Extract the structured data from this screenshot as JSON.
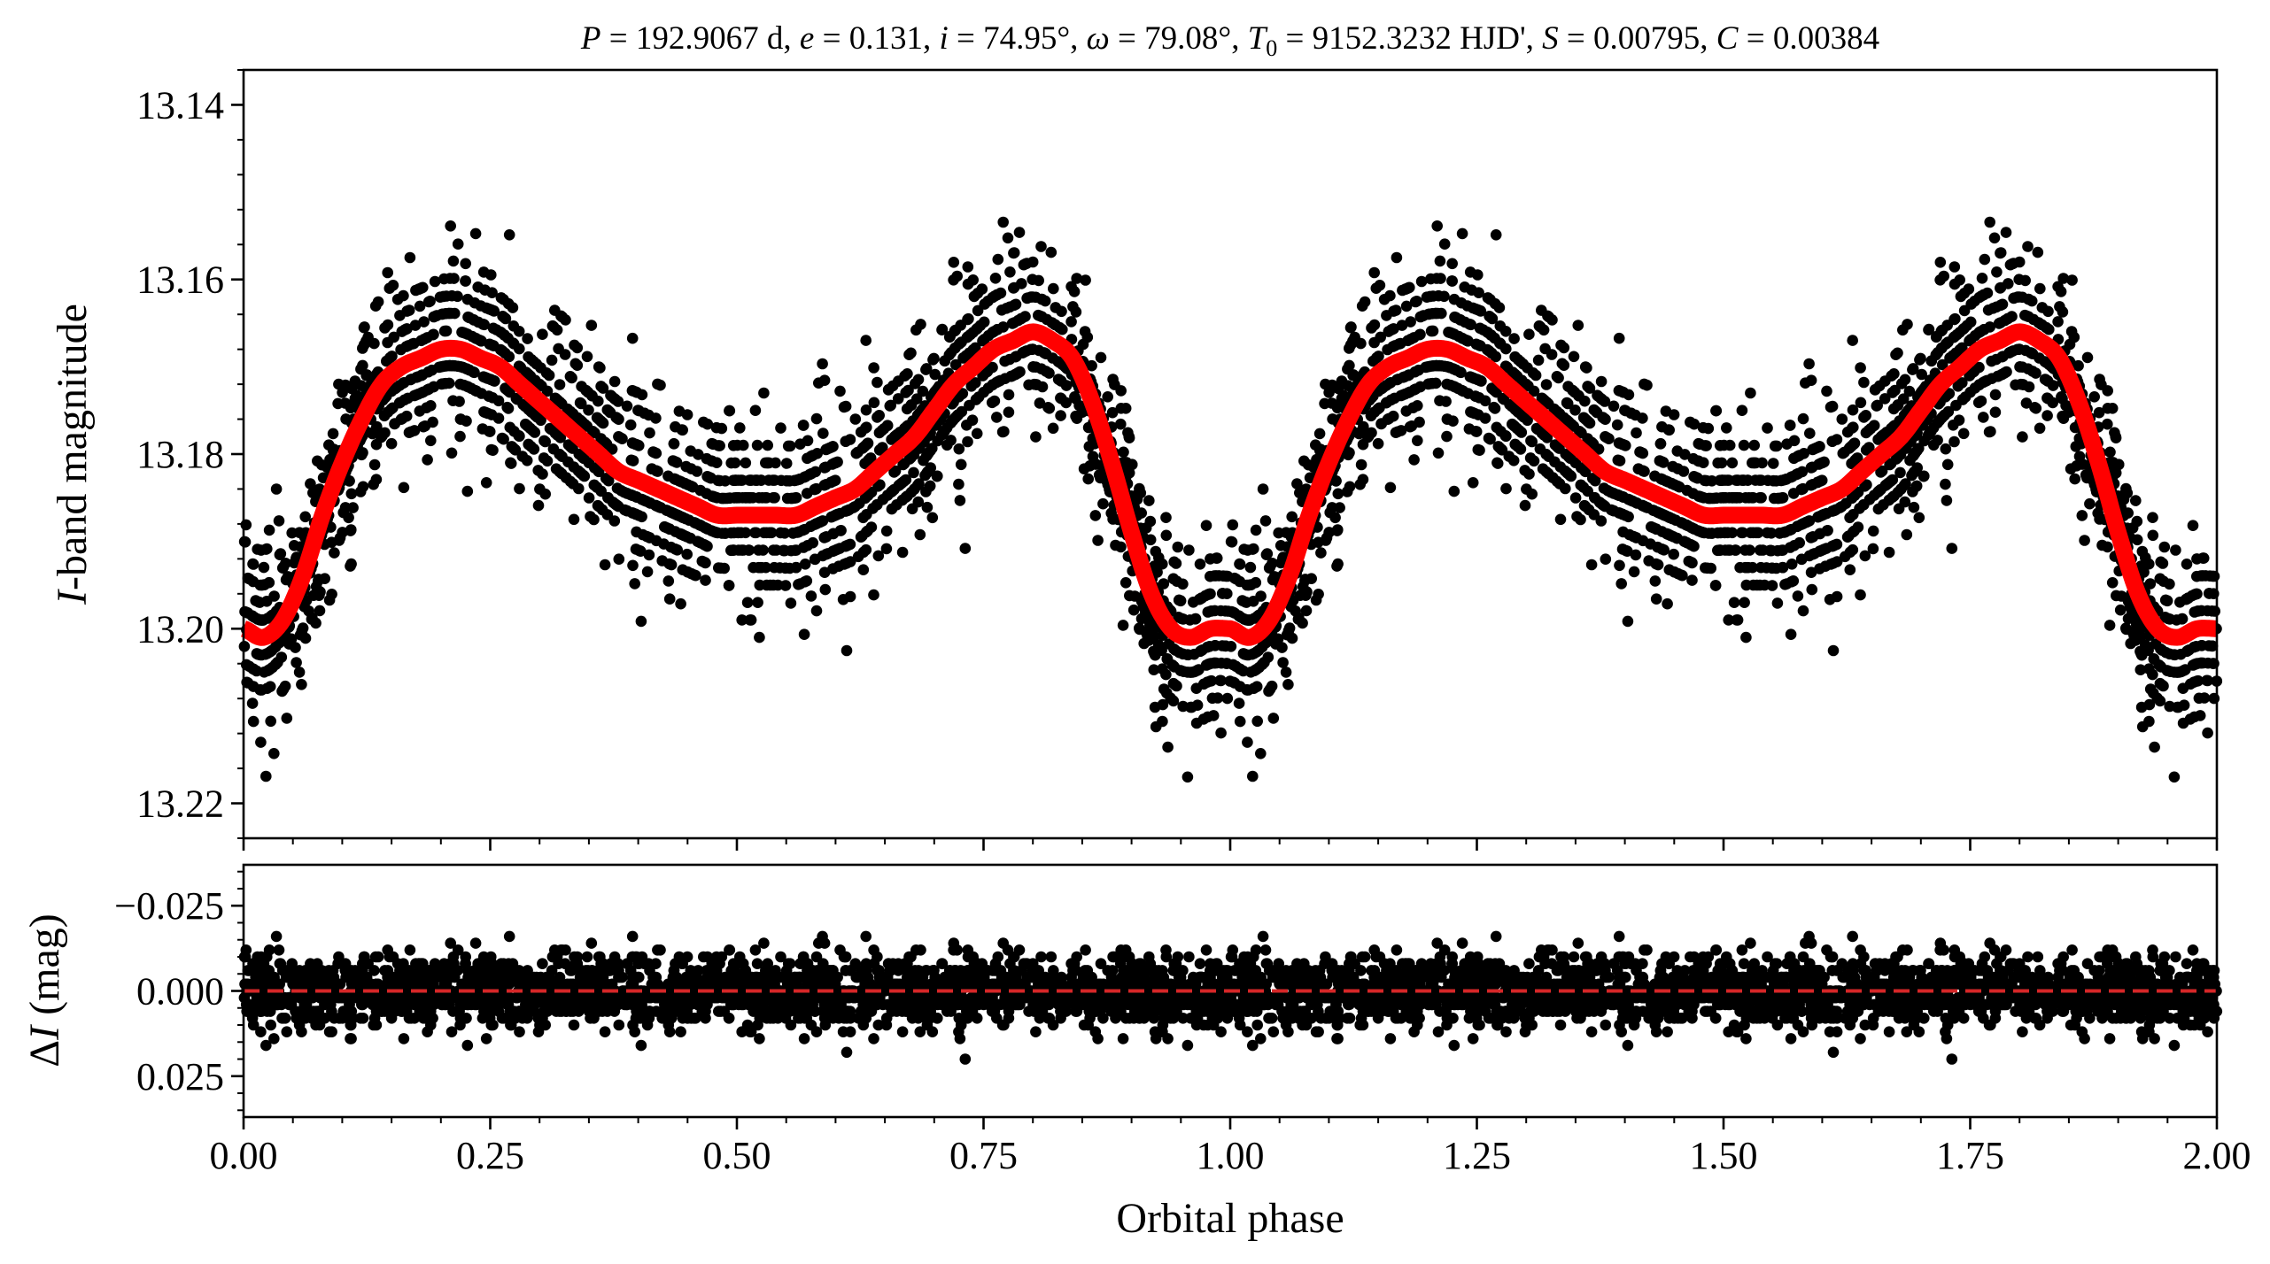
{
  "chart_data": [
    {
      "panel": "light-curve",
      "type": "scatter",
      "title": "P = 192.9067 d, e = 0.131, i = 74.95°, ω = 79.08°, T0 = 9152.3232 HJD', S = 0.00795, C = 0.00384",
      "title_parts": {
        "P_sym": "P",
        "P_val": " = 192.9067 d, ",
        "e_sym": "e",
        "e_val": " = 0.131, ",
        "i_sym": "i",
        "i_val": " = 74.95°, ",
        "w_sym": "ω",
        "w_val": " = 79.08°, ",
        "T_sym": "T",
        "T_sub": "0",
        "T_val": " = 9152.3232 HJD', ",
        "S_sym": "S",
        "S_val": " = 0.00795, ",
        "C_sym": "C",
        "C_val": " = 0.00384"
      },
      "ylabel": "I-band magnitude",
      "ylabel_parts": {
        "italic": "I",
        "rest": "-band magnitude"
      },
      "ylim": [
        13.224,
        13.136
      ],
      "y_inverted": true,
      "y_tick_values": [
        13.14,
        13.16,
        13.18,
        13.2,
        13.22
      ],
      "y_tick_labels": [
        "13.14",
        "13.16",
        "13.18",
        "13.20",
        "13.22"
      ],
      "xlim": [
        0.0,
        2.0
      ],
      "phase_repeat": 2,
      "series": [
        {
          "role": "observations",
          "marker": "dot",
          "color": "#000000",
          "x": [
            0.0,
            0.02,
            0.04,
            0.06,
            0.08,
            0.1,
            0.12,
            0.14,
            0.16,
            0.18,
            0.2,
            0.22,
            0.24,
            0.26,
            0.28,
            0.3,
            0.32,
            0.34,
            0.36,
            0.38,
            0.4,
            0.42,
            0.44,
            0.46,
            0.48,
            0.5,
            0.52,
            0.54,
            0.56,
            0.58,
            0.6,
            0.62,
            0.64,
            0.66,
            0.68,
            0.7,
            0.72,
            0.74,
            0.76,
            0.78,
            0.8,
            0.82,
            0.84,
            0.86,
            0.88,
            0.9,
            0.92,
            0.94,
            0.96,
            0.98,
            1.0
          ],
          "y": [
            13.2,
            13.201,
            13.199,
            13.194,
            13.187,
            13.181,
            13.176,
            13.172,
            13.17,
            13.169,
            13.168,
            13.168,
            13.169,
            13.17,
            13.172,
            13.174,
            13.176,
            13.178,
            13.18,
            13.182,
            13.183,
            13.184,
            13.185,
            13.186,
            13.187,
            13.187,
            13.187,
            13.187,
            13.187,
            13.186,
            13.185,
            13.184,
            13.182,
            13.18,
            13.178,
            13.175,
            13.172,
            13.17,
            13.168,
            13.167,
            13.166,
            13.167,
            13.169,
            13.174,
            13.181,
            13.189,
            13.196,
            13.2,
            13.201,
            13.2,
            13.2
          ],
          "scatter_sigma_mag": 0.005,
          "n_points_per_cycle": 2400
        },
        {
          "role": "model",
          "type": "line",
          "color": "#ff0000",
          "x": [
            0.0,
            0.02,
            0.04,
            0.06,
            0.08,
            0.1,
            0.12,
            0.14,
            0.16,
            0.18,
            0.2,
            0.22,
            0.24,
            0.26,
            0.28,
            0.3,
            0.32,
            0.34,
            0.36,
            0.38,
            0.4,
            0.42,
            0.44,
            0.46,
            0.48,
            0.5,
            0.52,
            0.54,
            0.56,
            0.58,
            0.6,
            0.62,
            0.64,
            0.66,
            0.68,
            0.7,
            0.72,
            0.74,
            0.76,
            0.78,
            0.8,
            0.82,
            0.84,
            0.86,
            0.88,
            0.9,
            0.92,
            0.94,
            0.96,
            0.98,
            1.0
          ],
          "y": [
            13.2,
            13.201,
            13.199,
            13.194,
            13.187,
            13.181,
            13.176,
            13.172,
            13.17,
            13.169,
            13.168,
            13.168,
            13.169,
            13.17,
            13.172,
            13.174,
            13.176,
            13.178,
            13.18,
            13.182,
            13.183,
            13.184,
            13.185,
            13.186,
            13.187,
            13.187,
            13.187,
            13.187,
            13.187,
            13.186,
            13.185,
            13.184,
            13.182,
            13.18,
            13.178,
            13.175,
            13.172,
            13.17,
            13.168,
            13.167,
            13.166,
            13.167,
            13.169,
            13.174,
            13.181,
            13.189,
            13.196,
            13.2,
            13.201,
            13.2,
            13.2
          ]
        }
      ],
      "colors": {
        "points": "#000000",
        "model": "#ff0000"
      }
    },
    {
      "panel": "residuals",
      "type": "scatter",
      "xlabel": "Orbital phase",
      "ylabel": "ΔI (mag)",
      "ylabel_parts": {
        "delta": "Δ",
        "italic": "I",
        "rest": " (mag)"
      },
      "xlim": [
        0.0,
        2.0
      ],
      "x_tick_values": [
        0.0,
        0.25,
        0.5,
        0.75,
        1.0,
        1.25,
        1.5,
        1.75,
        2.0
      ],
      "x_tick_labels": [
        "0.00",
        "0.25",
        "0.50",
        "0.75",
        "1.00",
        "1.25",
        "1.50",
        "1.75",
        "2.00"
      ],
      "ylim": [
        0.037,
        -0.037
      ],
      "y_inverted": true,
      "y_tick_values": [
        -0.025,
        0.0,
        0.025
      ],
      "y_tick_labels": [
        "−0.025",
        "0.000",
        "0.025"
      ],
      "series": [
        {
          "role": "residuals",
          "marker": "dot",
          "color": "#000000",
          "center": 0.0,
          "scatter_sigma_mag": 0.005
        },
        {
          "role": "zero-line",
          "type": "line",
          "style": "dashed",
          "color": "#d62728",
          "y": 0.0
        }
      ],
      "colors": {
        "points": "#000000",
        "zero_line": "#d62728"
      }
    }
  ]
}
